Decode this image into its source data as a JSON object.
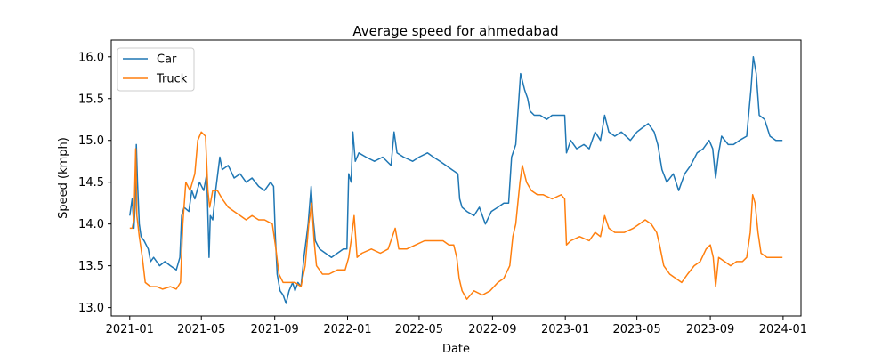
{
  "chart_data": {
    "type": "line",
    "title": "Average speed for ahmedabad",
    "xlabel": "Date",
    "ylabel": "Speed (kmph)",
    "x_ticks": [
      "2021-01",
      "2021-05",
      "2021-09",
      "2022-01",
      "2022-05",
      "2022-09",
      "2023-01",
      "2023-05",
      "2023-09",
      "2024-01"
    ],
    "y_ticks": [
      "13.0",
      "13.5",
      "14.0",
      "14.5",
      "15.0",
      "15.5",
      "16.0"
    ],
    "xlim": [
      "2020-12-01",
      "2024-01-31"
    ],
    "ylim": [
      12.9,
      16.2
    ],
    "grid": false,
    "legend_position": "top-left",
    "series": [
      {
        "name": "Car",
        "color": "#1f77b4",
        "points": [
          [
            "2021-01-01",
            14.1
          ],
          [
            "2021-01-05",
            14.3
          ],
          [
            "2021-01-08",
            13.95
          ],
          [
            "2021-01-10",
            14.2
          ],
          [
            "2021-01-12",
            14.95
          ],
          [
            "2021-01-14",
            14.5
          ],
          [
            "2021-01-17",
            14.0
          ],
          [
            "2021-01-20",
            13.85
          ],
          [
            "2021-01-25",
            13.8
          ],
          [
            "2021-02-01",
            13.7
          ],
          [
            "2021-02-05",
            13.55
          ],
          [
            "2021-02-10",
            13.6
          ],
          [
            "2021-02-20",
            13.5
          ],
          [
            "2021-03-01",
            13.55
          ],
          [
            "2021-03-10",
            13.5
          ],
          [
            "2021-03-20",
            13.45
          ],
          [
            "2021-03-26",
            13.6
          ],
          [
            "2021-03-29",
            14.1
          ],
          [
            "2021-04-02",
            14.2
          ],
          [
            "2021-04-10",
            14.15
          ],
          [
            "2021-04-15",
            14.4
          ],
          [
            "2021-04-20",
            14.3
          ],
          [
            "2021-04-28",
            14.5
          ],
          [
            "2021-05-05",
            14.4
          ],
          [
            "2021-05-10",
            14.6
          ],
          [
            "2021-05-14",
            13.6
          ],
          [
            "2021-05-16",
            14.1
          ],
          [
            "2021-05-20",
            14.05
          ],
          [
            "2021-05-25",
            14.4
          ],
          [
            "2021-06-01",
            14.8
          ],
          [
            "2021-06-05",
            14.65
          ],
          [
            "2021-06-15",
            14.7
          ],
          [
            "2021-06-25",
            14.55
          ],
          [
            "2021-07-05",
            14.6
          ],
          [
            "2021-07-15",
            14.5
          ],
          [
            "2021-07-25",
            14.55
          ],
          [
            "2021-08-05",
            14.45
          ],
          [
            "2021-08-15",
            14.4
          ],
          [
            "2021-08-25",
            14.5
          ],
          [
            "2021-08-30",
            14.45
          ],
          [
            "2021-09-02",
            13.85
          ],
          [
            "2021-09-05",
            13.4
          ],
          [
            "2021-09-10",
            13.2
          ],
          [
            "2021-09-15",
            13.15
          ],
          [
            "2021-09-20",
            13.05
          ],
          [
            "2021-09-25",
            13.2
          ],
          [
            "2021-10-01",
            13.3
          ],
          [
            "2021-10-05",
            13.2
          ],
          [
            "2021-10-10",
            13.3
          ],
          [
            "2021-10-15",
            13.25
          ],
          [
            "2021-10-20",
            13.6
          ],
          [
            "2021-10-27",
            14.0
          ],
          [
            "2021-11-01",
            14.45
          ],
          [
            "2021-11-04",
            14.1
          ],
          [
            "2021-11-08",
            13.8
          ],
          [
            "2021-11-15",
            13.7
          ],
          [
            "2021-11-25",
            13.65
          ],
          [
            "2021-12-05",
            13.6
          ],
          [
            "2021-12-15",
            13.65
          ],
          [
            "2021-12-25",
            13.7
          ],
          [
            "2021-12-31",
            13.7
          ],
          [
            "2022-01-03",
            14.6
          ],
          [
            "2022-01-07",
            14.5
          ],
          [
            "2022-01-10",
            15.1
          ],
          [
            "2022-01-14",
            14.75
          ],
          [
            "2022-01-20",
            14.85
          ],
          [
            "2022-02-01",
            14.8
          ],
          [
            "2022-02-15",
            14.75
          ],
          [
            "2022-03-01",
            14.8
          ],
          [
            "2022-03-15",
            14.7
          ],
          [
            "2022-03-20",
            15.1
          ],
          [
            "2022-03-25",
            14.85
          ],
          [
            "2022-04-05",
            14.8
          ],
          [
            "2022-04-20",
            14.75
          ],
          [
            "2022-05-01",
            14.8
          ],
          [
            "2022-05-15",
            14.85
          ],
          [
            "2022-05-25",
            14.8
          ],
          [
            "2022-06-05",
            14.75
          ],
          [
            "2022-06-15",
            14.7
          ],
          [
            "2022-06-25",
            14.65
          ],
          [
            "2022-07-05",
            14.6
          ],
          [
            "2022-07-08",
            14.3
          ],
          [
            "2022-07-12",
            14.2
          ],
          [
            "2022-07-20",
            14.15
          ],
          [
            "2022-08-01",
            14.1
          ],
          [
            "2022-08-10",
            14.2
          ],
          [
            "2022-08-20",
            14.0
          ],
          [
            "2022-08-30",
            14.15
          ],
          [
            "2022-09-10",
            14.2
          ],
          [
            "2022-09-20",
            14.25
          ],
          [
            "2022-09-28",
            14.25
          ],
          [
            "2022-10-03",
            14.8
          ],
          [
            "2022-10-10",
            14.95
          ],
          [
            "2022-10-18",
            15.8
          ],
          [
            "2022-10-25",
            15.6
          ],
          [
            "2022-10-30",
            15.5
          ],
          [
            "2022-11-03",
            15.35
          ],
          [
            "2022-11-10",
            15.3
          ],
          [
            "2022-11-20",
            15.3
          ],
          [
            "2022-12-01",
            15.25
          ],
          [
            "2022-12-10",
            15.3
          ],
          [
            "2022-12-20",
            15.3
          ],
          [
            "2022-12-31",
            15.3
          ],
          [
            "2023-01-03",
            14.85
          ],
          [
            "2023-01-10",
            15.0
          ],
          [
            "2023-01-20",
            14.9
          ],
          [
            "2023-02-01",
            14.95
          ],
          [
            "2023-02-10",
            14.9
          ],
          [
            "2023-02-20",
            15.1
          ],
          [
            "2023-03-01",
            15.0
          ],
          [
            "2023-03-08",
            15.3
          ],
          [
            "2023-03-15",
            15.1
          ],
          [
            "2023-03-25",
            15.05
          ],
          [
            "2023-04-05",
            15.1
          ],
          [
            "2023-04-20",
            15.0
          ],
          [
            "2023-05-01",
            15.1
          ],
          [
            "2023-05-10",
            15.15
          ],
          [
            "2023-05-20",
            15.2
          ],
          [
            "2023-05-30",
            15.1
          ],
          [
            "2023-06-05",
            14.95
          ],
          [
            "2023-06-12",
            14.65
          ],
          [
            "2023-06-20",
            14.5
          ],
          [
            "2023-07-01",
            14.6
          ],
          [
            "2023-07-10",
            14.4
          ],
          [
            "2023-07-20",
            14.6
          ],
          [
            "2023-07-30",
            14.7
          ],
          [
            "2023-08-10",
            14.85
          ],
          [
            "2023-08-20",
            14.9
          ],
          [
            "2023-08-30",
            15.0
          ],
          [
            "2023-09-05",
            14.9
          ],
          [
            "2023-09-10",
            14.55
          ],
          [
            "2023-09-15",
            14.85
          ],
          [
            "2023-09-20",
            15.05
          ],
          [
            "2023-10-01",
            14.95
          ],
          [
            "2023-10-10",
            14.95
          ],
          [
            "2023-10-20",
            15.0
          ],
          [
            "2023-11-01",
            15.05
          ],
          [
            "2023-11-08",
            15.6
          ],
          [
            "2023-11-12",
            16.0
          ],
          [
            "2023-11-17",
            15.8
          ],
          [
            "2023-11-22",
            15.3
          ],
          [
            "2023-12-01",
            15.25
          ],
          [
            "2023-12-10",
            15.05
          ],
          [
            "2023-12-20",
            15.0
          ],
          [
            "2023-12-31",
            15.0
          ]
        ]
      },
      {
        "name": "Truck",
        "color": "#ff7f0e",
        "points": [
          [
            "2021-01-01",
            13.95
          ],
          [
            "2021-01-05",
            13.95
          ],
          [
            "2021-01-08",
            14.05
          ],
          [
            "2021-01-11",
            14.9
          ],
          [
            "2021-01-13",
            14.1
          ],
          [
            "2021-01-17",
            13.85
          ],
          [
            "2021-01-22",
            13.6
          ],
          [
            "2021-01-27",
            13.3
          ],
          [
            "2021-02-05",
            13.25
          ],
          [
            "2021-02-15",
            13.25
          ],
          [
            "2021-02-25",
            13.22
          ],
          [
            "2021-03-10",
            13.25
          ],
          [
            "2021-03-20",
            13.22
          ],
          [
            "2021-03-27",
            13.3
          ],
          [
            "2021-03-31",
            14.0
          ],
          [
            "2021-04-05",
            14.5
          ],
          [
            "2021-04-12",
            14.4
          ],
          [
            "2021-04-20",
            14.6
          ],
          [
            "2021-04-25",
            15.0
          ],
          [
            "2021-05-01",
            15.1
          ],
          [
            "2021-05-08",
            15.05
          ],
          [
            "2021-05-12",
            14.4
          ],
          [
            "2021-05-15",
            14.2
          ],
          [
            "2021-05-20",
            14.4
          ],
          [
            "2021-05-28",
            14.4
          ],
          [
            "2021-06-05",
            14.3
          ],
          [
            "2021-06-15",
            14.2
          ],
          [
            "2021-06-25",
            14.15
          ],
          [
            "2021-07-05",
            14.1
          ],
          [
            "2021-07-15",
            14.05
          ],
          [
            "2021-07-25",
            14.1
          ],
          [
            "2021-08-05",
            14.05
          ],
          [
            "2021-08-15",
            14.05
          ],
          [
            "2021-08-28",
            14.0
          ],
          [
            "2021-09-03",
            13.7
          ],
          [
            "2021-09-08",
            13.4
          ],
          [
            "2021-09-15",
            13.3
          ],
          [
            "2021-09-25",
            13.3
          ],
          [
            "2021-10-05",
            13.3
          ],
          [
            "2021-10-15",
            13.25
          ],
          [
            "2021-10-22",
            13.5
          ],
          [
            "2021-10-28",
            14.0
          ],
          [
            "2021-11-02",
            14.25
          ],
          [
            "2021-11-06",
            13.8
          ],
          [
            "2021-11-10",
            13.5
          ],
          [
            "2021-11-20",
            13.4
          ],
          [
            "2021-12-01",
            13.4
          ],
          [
            "2021-12-15",
            13.45
          ],
          [
            "2021-12-28",
            13.45
          ],
          [
            "2022-01-03",
            13.6
          ],
          [
            "2022-01-07",
            13.8
          ],
          [
            "2022-01-12",
            14.1
          ],
          [
            "2022-01-17",
            13.6
          ],
          [
            "2022-01-25",
            13.65
          ],
          [
            "2022-02-10",
            13.7
          ],
          [
            "2022-02-25",
            13.65
          ],
          [
            "2022-03-10",
            13.7
          ],
          [
            "2022-03-22",
            13.95
          ],
          [
            "2022-03-28",
            13.7
          ],
          [
            "2022-04-10",
            13.7
          ],
          [
            "2022-04-25",
            13.75
          ],
          [
            "2022-05-10",
            13.8
          ],
          [
            "2022-05-25",
            13.8
          ],
          [
            "2022-06-10",
            13.8
          ],
          [
            "2022-06-20",
            13.75
          ],
          [
            "2022-06-28",
            13.75
          ],
          [
            "2022-07-03",
            13.6
          ],
          [
            "2022-07-07",
            13.35
          ],
          [
            "2022-07-12",
            13.2
          ],
          [
            "2022-07-20",
            13.1
          ],
          [
            "2022-08-01",
            13.2
          ],
          [
            "2022-08-15",
            13.15
          ],
          [
            "2022-08-28",
            13.2
          ],
          [
            "2022-09-10",
            13.3
          ],
          [
            "2022-09-20",
            13.35
          ],
          [
            "2022-09-30",
            13.5
          ],
          [
            "2022-10-05",
            13.85
          ],
          [
            "2022-10-10",
            14.0
          ],
          [
            "2022-10-17",
            14.5
          ],
          [
            "2022-10-21",
            14.7
          ],
          [
            "2022-10-28",
            14.5
          ],
          [
            "2022-11-05",
            14.4
          ],
          [
            "2022-11-15",
            14.35
          ],
          [
            "2022-11-25",
            14.35
          ],
          [
            "2022-12-10",
            14.3
          ],
          [
            "2022-12-25",
            14.35
          ],
          [
            "2022-12-31",
            14.3
          ],
          [
            "2023-01-03",
            13.75
          ],
          [
            "2023-01-10",
            13.8
          ],
          [
            "2023-01-25",
            13.85
          ],
          [
            "2023-02-10",
            13.8
          ],
          [
            "2023-02-20",
            13.9
          ],
          [
            "2023-03-01",
            13.85
          ],
          [
            "2023-03-08",
            14.1
          ],
          [
            "2023-03-15",
            13.95
          ],
          [
            "2023-03-25",
            13.9
          ],
          [
            "2023-04-10",
            13.9
          ],
          [
            "2023-04-25",
            13.95
          ],
          [
            "2023-05-05",
            14.0
          ],
          [
            "2023-05-15",
            14.05
          ],
          [
            "2023-05-25",
            14.0
          ],
          [
            "2023-06-03",
            13.9
          ],
          [
            "2023-06-08",
            13.75
          ],
          [
            "2023-06-15",
            13.5
          ],
          [
            "2023-06-25",
            13.4
          ],
          [
            "2023-07-05",
            13.35
          ],
          [
            "2023-07-15",
            13.3
          ],
          [
            "2023-07-25",
            13.4
          ],
          [
            "2023-08-05",
            13.5
          ],
          [
            "2023-08-15",
            13.55
          ],
          [
            "2023-08-25",
            13.7
          ],
          [
            "2023-09-01",
            13.75
          ],
          [
            "2023-09-06",
            13.6
          ],
          [
            "2023-09-10",
            13.25
          ],
          [
            "2023-09-15",
            13.6
          ],
          [
            "2023-09-25",
            13.55
          ],
          [
            "2023-10-05",
            13.5
          ],
          [
            "2023-10-15",
            13.55
          ],
          [
            "2023-10-25",
            13.55
          ],
          [
            "2023-11-01",
            13.6
          ],
          [
            "2023-11-07",
            13.9
          ],
          [
            "2023-11-11",
            14.35
          ],
          [
            "2023-11-15",
            14.25
          ],
          [
            "2023-11-20",
            13.9
          ],
          [
            "2023-11-25",
            13.65
          ],
          [
            "2023-12-05",
            13.6
          ],
          [
            "2023-12-15",
            13.6
          ],
          [
            "2023-12-25",
            13.6
          ],
          [
            "2023-12-31",
            13.6
          ]
        ]
      }
    ]
  }
}
